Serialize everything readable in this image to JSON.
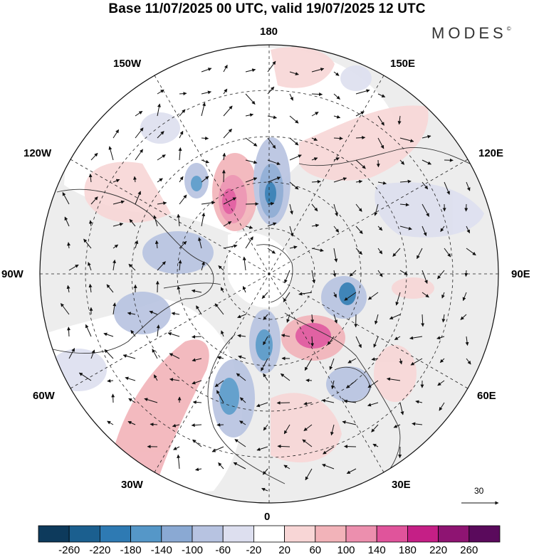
{
  "title": "Base 11/07/2025 00 UTC, valid 19/07/2025 12 UTC",
  "brand": "MODES",
  "brand_mark": "©",
  "longitude_labels": {
    "top": "180",
    "bottom": "0",
    "left": "90W",
    "right": "90E",
    "upper_left_1": "150W",
    "upper_left_2": "120W",
    "upper_right_1": "150E",
    "upper_right_2": "120E",
    "lower_left_1": "60W",
    "lower_left_2": "30W",
    "lower_right_1": "60E",
    "lower_right_2": "30E"
  },
  "colorbar": {
    "labels": [
      "-260",
      "-220",
      "-180",
      "-140",
      "-100",
      "-60",
      "-20",
      "20",
      "60",
      "100",
      "140",
      "180",
      "220",
      "260"
    ],
    "colors": [
      "#0d3a5c",
      "#1b5f8f",
      "#2e7ab3",
      "#5597c8",
      "#8aa9d3",
      "#b7c3e1",
      "#dddfef",
      "#ffffff",
      "#f8d6d6",
      "#f2b3b9",
      "#ec8fae",
      "#e0549b",
      "#c51f86",
      "#8e1472",
      "#5a0a5c"
    ]
  },
  "vector_reference": "30",
  "icons": {
    "brand_mark": "copyright-icon",
    "reference_arrow": "arrow-right-icon"
  }
}
